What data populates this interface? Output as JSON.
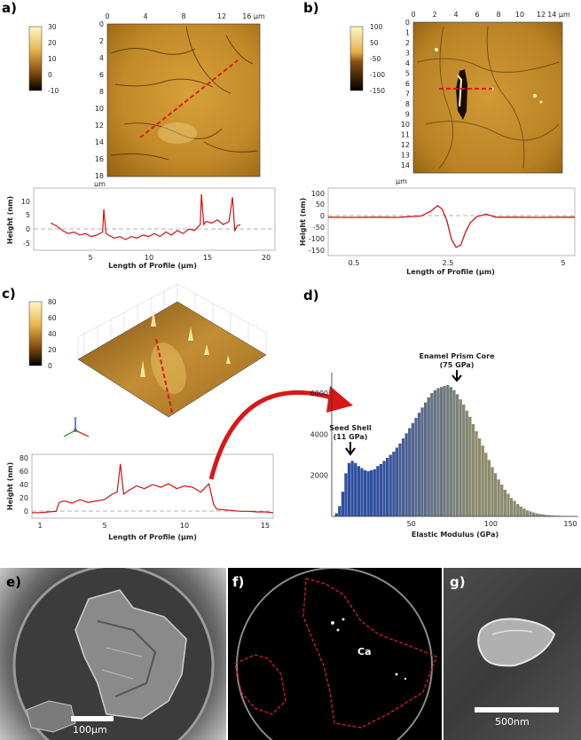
{
  "panels": {
    "a": {
      "label": "a)",
      "colorbar_ticks": [
        "30",
        "20",
        "10",
        "0",
        "-10"
      ],
      "top_ticks": [
        "0",
        "4",
        "8",
        "12",
        "16 µm"
      ],
      "left_ticks": [
        "0",
        "2",
        "4",
        "6",
        "8",
        "10",
        "12",
        "14",
        "16",
        "18"
      ],
      "axis_unit": "µm",
      "profile": {
        "ylabel": "Height (nm)",
        "xlabel": "Length of Profile (µm)",
        "yticks": [
          "10",
          "5",
          "0",
          "-5"
        ],
        "xticks": [
          "5",
          "10",
          "15",
          "20"
        ]
      }
    },
    "b": {
      "label": "b)",
      "colorbar_ticks": [
        "100",
        "50",
        "-50",
        "-100",
        "-150"
      ],
      "top_ticks": [
        "0",
        "2",
        "4",
        "6",
        "8",
        "10",
        "12",
        "14 µm"
      ],
      "left_ticks": [
        "0",
        "1",
        "2",
        "3",
        "4",
        "5",
        "6",
        "7",
        "8",
        "9",
        "10",
        "11",
        "12",
        "13",
        "14"
      ],
      "axis_unit": "µm",
      "profile": {
        "ylabel": "Height (nm)",
        "xlabel": "Length of Profile (µm)",
        "yticks": [
          "100",
          "50",
          "0",
          "-50",
          "-100",
          "-150"
        ],
        "xticks": [
          "0.5",
          "2.5",
          "5"
        ]
      }
    },
    "c": {
      "label": "c)",
      "colorbar_ticks": [
        "80",
        "60",
        "40",
        "20",
        "0"
      ],
      "profile": {
        "ylabel": "Height (nm)",
        "xlabel": "Length of Profile (µm)",
        "yticks": [
          "80",
          "60",
          "40",
          "20",
          "0"
        ],
        "xticks": [
          "1",
          "5",
          "10",
          "15"
        ]
      }
    },
    "d": {
      "label": "d)",
      "annotation_core": [
        "Enamel Prism Core",
        "(75 GPa)"
      ],
      "annotation_shell": [
        "Seed Shell",
        "(11 GPa)"
      ]
    },
    "e": {
      "label": "e)",
      "scalebar": "100µm"
    },
    "f": {
      "label": "f)",
      "element": "Ca"
    },
    "g": {
      "label": "g)",
      "scalebar": "500nm"
    }
  },
  "chart_data": [
    {
      "type": "bar",
      "xlabel": "Elastic Modulus (GPa)",
      "ylabel": "",
      "xlim": [
        0,
        155
      ],
      "ylim": [
        0,
        7000
      ],
      "xticks": [
        "50",
        "100",
        "150"
      ],
      "yticks": [
        "2000",
        "4000",
        "6000"
      ],
      "bin_width_gpa": 2,
      "series": [
        {
          "color": "#2f4fa0",
          "x": [
            3,
            5,
            7,
            9,
            11,
            13,
            15,
            17,
            19,
            21,
            23,
            25,
            27,
            29,
            31,
            33,
            35,
            37,
            39,
            41,
            43,
            45,
            47,
            49,
            51,
            53,
            55,
            57,
            59,
            61,
            63,
            65,
            67,
            69,
            71,
            73,
            75,
            77,
            79,
            81,
            83,
            85,
            87,
            89,
            91,
            93,
            95,
            97,
            99,
            101,
            103,
            105,
            107,
            109,
            111,
            113,
            115,
            117,
            119,
            121,
            123,
            125,
            127,
            129,
            131,
            133,
            135,
            137,
            139,
            141,
            143,
            145,
            147,
            149,
            151,
            153
          ],
          "values": [
            150,
            500,
            1200,
            2100,
            2600,
            2700,
            2600,
            2450,
            2350,
            2250,
            2200,
            2250,
            2300,
            2450,
            2550,
            2700,
            2850,
            3000,
            3150,
            3350,
            3550,
            3800,
            4050,
            4300,
            4550,
            4800,
            5050,
            5300,
            5550,
            5800,
            6000,
            6150,
            6250,
            6300,
            6350,
            6400,
            6300,
            6150,
            5950,
            5700,
            5450,
            5150,
            4850,
            4500,
            4150,
            3800,
            3450,
            3100,
            2750,
            2400,
            2100,
            1800,
            1550,
            1300,
            1100,
            900,
            750,
            600,
            480,
            380,
            300,
            240,
            190,
            150,
            120,
            95,
            75,
            60,
            50,
            40,
            32,
            25,
            20,
            15,
            12,
            10
          ]
        }
      ]
    },
    {
      "type": "line",
      "xlabel": "Length of Profile (µm)",
      "ylabel": "Height (nm)",
      "xlim": [
        0,
        21
      ],
      "ylim": [
        -7.5,
        13
      ],
      "x": [
        1.5,
        2,
        2.5,
        3,
        3.5,
        4,
        4.5,
        5,
        5.5,
        6,
        6.1,
        6.3,
        6.5,
        7,
        7.5,
        8,
        8.5,
        9,
        9.5,
        10,
        10.5,
        11,
        11.5,
        12,
        12.5,
        13,
        13.5,
        14,
        14.5,
        14.6,
        14.8,
        15,
        15.5,
        16,
        16.5,
        17,
        17.3,
        17.5,
        17.7,
        18
      ],
      "values": [
        1.5,
        0.5,
        -1,
        -2,
        -1.5,
        -2.5,
        -2,
        -3,
        -2.5,
        -1.5,
        6,
        -2,
        -2.5,
        -3.5,
        -3,
        -4,
        -3,
        -3.5,
        -2.5,
        -3,
        -2,
        -3,
        -1.5,
        -2.5,
        -1,
        -2,
        -0.5,
        -1,
        1,
        11,
        1,
        2,
        1.5,
        2.5,
        1,
        2,
        10,
        -1,
        0.5,
        1
      ]
    },
    {
      "type": "line",
      "xlabel": "Length of Profile (µm)",
      "ylabel": "Height (nm)",
      "xlim": [
        0,
        5.3
      ],
      "ylim": [
        -160,
        130
      ],
      "x": [
        0,
        0.5,
        1,
        1.5,
        2,
        2.2,
        2.35,
        2.45,
        2.55,
        2.65,
        2.75,
        2.85,
        2.95,
        3.05,
        3.2,
        3.4,
        3.6,
        4,
        4.5,
        5,
        5.3
      ],
      "values": [
        5,
        4,
        5,
        4,
        10,
        30,
        55,
        40,
        -10,
        -90,
        -125,
        -115,
        -60,
        -20,
        8,
        18,
        5,
        5,
        4,
        5,
        5
      ]
    },
    {
      "type": "line",
      "xlabel": "Length of Profile (µm)",
      "ylabel": "Height (nm)",
      "xlim": [
        0.5,
        15.5
      ],
      "ylim": [
        -5,
        88
      ],
      "x": [
        0.5,
        1,
        1.5,
        2,
        2.2,
        2.5,
        3,
        3.5,
        4,
        4.5,
        5,
        5.5,
        5.8,
        6,
        6.2,
        6.5,
        7,
        7.5,
        8,
        8.5,
        9,
        9.5,
        10,
        10.5,
        11,
        11.5,
        11.8,
        12,
        12.5,
        13,
        13.5,
        14,
        14.5,
        15,
        15.5
      ],
      "values": [
        3,
        3,
        4,
        5,
        18,
        20,
        17,
        22,
        18,
        20,
        22,
        30,
        33,
        74,
        30,
        35,
        42,
        38,
        44,
        40,
        45,
        38,
        42,
        40,
        33,
        45,
        15,
        8,
        7,
        6,
        5,
        5,
        4,
        4,
        3
      ]
    }
  ]
}
